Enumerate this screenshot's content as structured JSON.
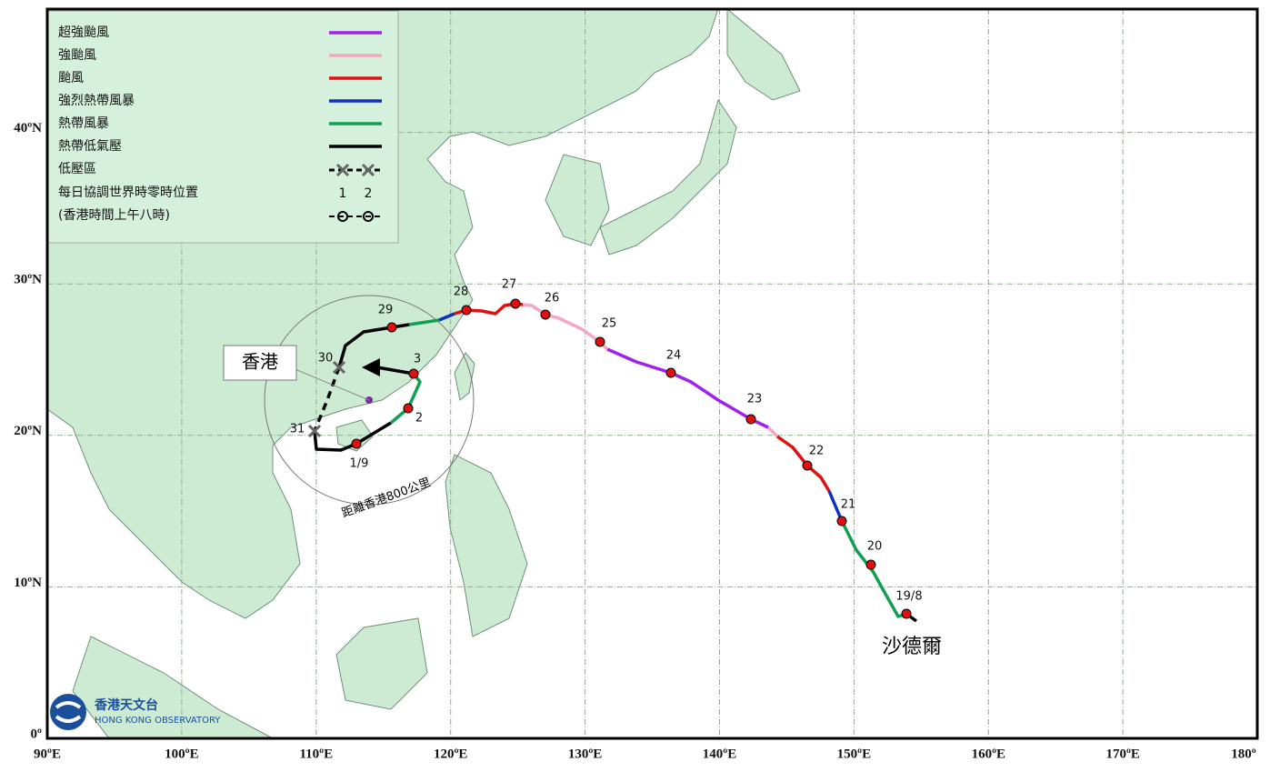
{
  "map": {
    "legend": [
      {
        "label": "超強颱風",
        "color": "#a020f0"
      },
      {
        "label": "強颱風",
        "color": "#f4a8c0"
      },
      {
        "label": "颱風",
        "color": "#e01010"
      },
      {
        "label": "強烈熱帶風暴",
        "color": "#1030c0"
      },
      {
        "label": "熱帶風暴",
        "color": "#10a050"
      },
      {
        "label": "熱帶低氣壓",
        "color": "#000000"
      }
    ],
    "low_area": "低壓區",
    "daily_note": "每日協調世界時零時位置",
    "daily_note_2": "(香港時間上午八時)",
    "sample_numbers": [
      "1",
      "2"
    ],
    "lon_labels": [
      "90ºE",
      "100ºE",
      "110ºE",
      "120ºE",
      "130ºE",
      "140ºE",
      "150ºE",
      "160ºE",
      "170ºE",
      "180º"
    ],
    "lat_labels": [
      "0º",
      "10ºN",
      "20ºN",
      "30ºN",
      "40ºN"
    ],
    "days": [
      "19/8",
      "20",
      "21",
      "22",
      "23",
      "24",
      "25",
      "26",
      "27",
      "28",
      "29",
      "30",
      "31",
      "1/9",
      "2",
      "3"
    ],
    "hong_kong": "香港",
    "storm_name": "沙德爾",
    "range_label": "距離香港800公里",
    "logo_cn": "香港天文台",
    "logo_en": "HONG KONG OBSERVATORY"
  }
}
